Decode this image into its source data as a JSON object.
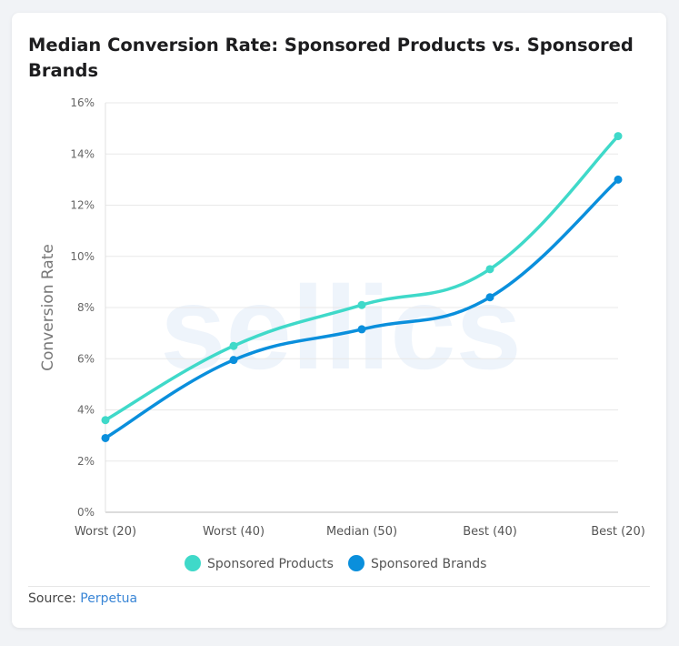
{
  "chart_data": {
    "type": "line",
    "title": "Median Conversion Rate: Sponsored Products vs. Sponsored Brands",
    "xlabel": "",
    "ylabel": "Conversion Rate",
    "categories": [
      "Worst (20)",
      "Worst (40)",
      "Median (50)",
      "Best (40)",
      "Best (20)"
    ],
    "yticks": [
      "0%",
      "2%",
      "4%",
      "6%",
      "8%",
      "10%",
      "12%",
      "14%",
      "16%"
    ],
    "ylim": [
      0,
      16
    ],
    "grid": true,
    "legend_position": "bottom",
    "watermark": "sellics",
    "series": [
      {
        "name": "Sponsored Products",
        "color": "#3fd9c9",
        "values": [
          3.6,
          6.5,
          8.1,
          9.5,
          14.7
        ]
      },
      {
        "name": "Sponsored Brands",
        "color": "#0a8fdc",
        "values": [
          2.9,
          5.95,
          7.15,
          8.4,
          13.0
        ]
      }
    ]
  },
  "source": {
    "label": "Source:",
    "link": "Perpetua"
  }
}
